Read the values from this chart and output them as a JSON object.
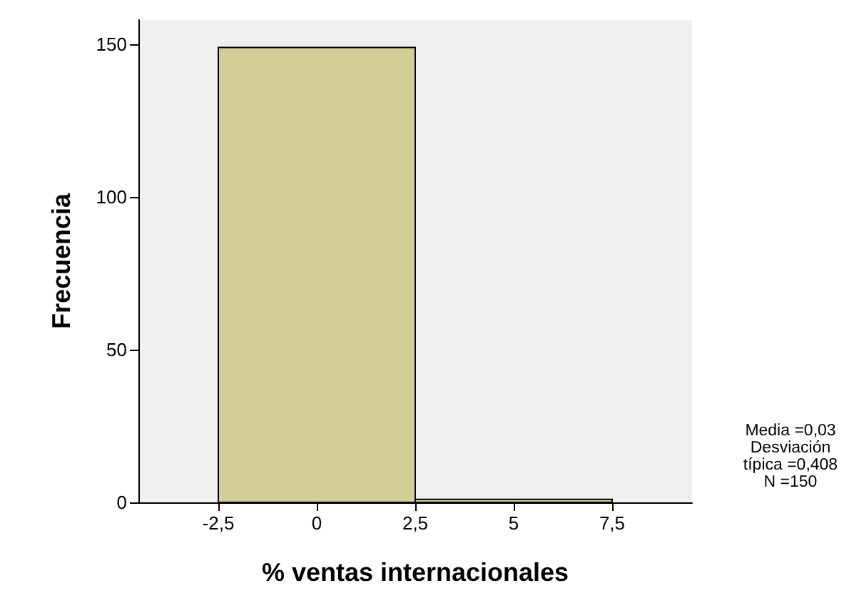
{
  "chart_data": {
    "type": "histogram",
    "xlabel": "% ventas internacionales",
    "ylabel": "Frecuencia",
    "bins": [
      -2.5,
      2.5,
      7.5
    ],
    "values": [
      149,
      1
    ],
    "color": "#d3ce98",
    "xlim": [
      -4.53,
      9.53
    ],
    "ylim": [
      0,
      158
    ],
    "xticks": [
      {
        "value": -2.5,
        "label": "-2,5"
      },
      0,
      {
        "value": 2.5,
        "label": "2,5"
      },
      5,
      {
        "value": 7.5,
        "label": "7,5"
      }
    ],
    "yticks": [
      0,
      50,
      100,
      150
    ],
    "grid": false,
    "annotations": [
      "Media =0,03",
      "Desviación típica =0,408",
      "N =150"
    ]
  }
}
